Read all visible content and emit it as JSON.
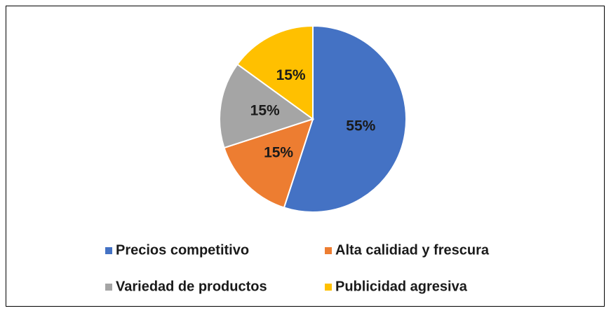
{
  "chart_data": {
    "type": "pie",
    "categories": [
      "Precios competitivo",
      "Alta calidiad y frescura",
      "Variedad de productos",
      "Publicidad agresiva"
    ],
    "values": [
      55,
      15,
      15,
      15
    ],
    "value_labels": [
      "55%",
      "15%",
      "15%",
      "15%"
    ],
    "colors": [
      "#4472c4",
      "#ed7d31",
      "#a5a5a5",
      "#ffc000"
    ],
    "legend": "bottom"
  }
}
